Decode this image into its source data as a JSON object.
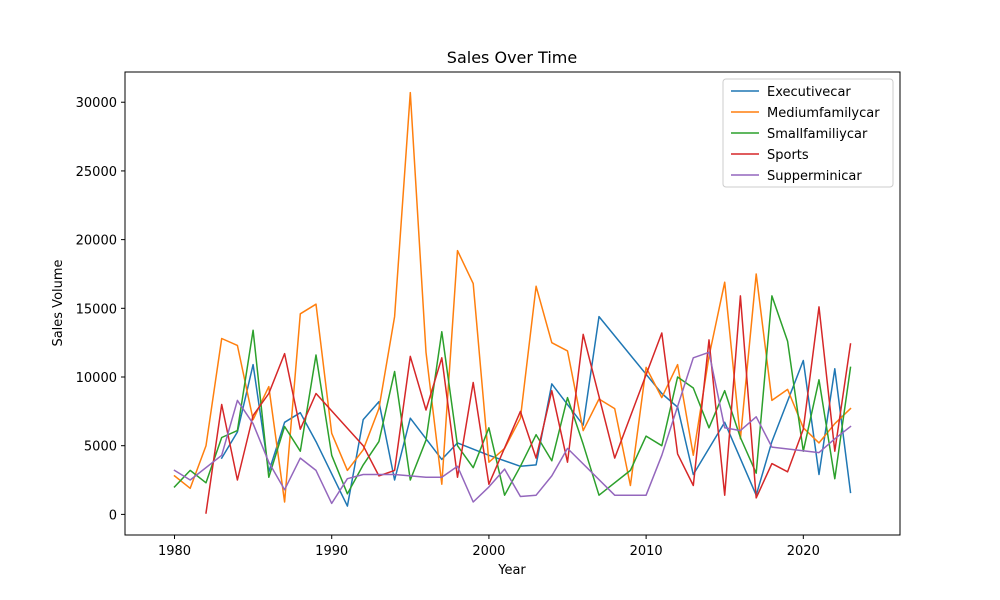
{
  "chart_data": {
    "type": "line",
    "title": "Sales Over Time",
    "xlabel": "Year",
    "ylabel": "Sales Volume",
    "xlim": [
      1976.85,
      2026.15
    ],
    "ylim": [
      -1500,
      32200
    ],
    "xticks": [
      1980,
      1990,
      2000,
      2010,
      2020
    ],
    "yticks": [
      0,
      5000,
      10000,
      15000,
      20000,
      25000,
      30000
    ],
    "grid": false,
    "legend_position": "top-right",
    "series": [
      {
        "name": "Executivecar",
        "color": "#1f77b4",
        "points": [
          [
            1983,
            4100
          ],
          [
            1984,
            6000
          ],
          [
            1985,
            10900
          ],
          [
            1986,
            3100
          ],
          [
            1987,
            6700
          ],
          [
            1988,
            7400
          ],
          [
            1989,
            5300
          ],
          [
            1991,
            600
          ],
          [
            1992,
            6900
          ],
          [
            1993,
            8200
          ],
          [
            1994,
            2500
          ],
          [
            1995,
            7000
          ],
          [
            1997,
            4000
          ],
          [
            1998,
            5200
          ],
          [
            2000,
            4300
          ],
          [
            2002,
            3500
          ],
          [
            2003,
            3600
          ],
          [
            2004,
            9500
          ],
          [
            2006,
            6500
          ],
          [
            2007,
            14400
          ],
          [
            2011,
            8800
          ],
          [
            2012,
            7800
          ],
          [
            2013,
            2900
          ],
          [
            2015,
            6700
          ],
          [
            2017,
            1400
          ],
          [
            2018,
            5300
          ],
          [
            2020,
            11200
          ],
          [
            2021,
            2900
          ],
          [
            2022,
            10600
          ],
          [
            2023,
            1600
          ]
        ]
      },
      {
        "name": "Mediumfamilycar",
        "color": "#ff7f0e",
        "points": [
          [
            1980,
            2800
          ],
          [
            1981,
            1900
          ],
          [
            1982,
            5000
          ],
          [
            1983,
            12800
          ],
          [
            1984,
            12300
          ],
          [
            1985,
            6900
          ],
          [
            1986,
            9300
          ],
          [
            1987,
            900
          ],
          [
            1988,
            14600
          ],
          [
            1989,
            15300
          ],
          [
            1990,
            5900
          ],
          [
            1991,
            3200
          ],
          [
            1992,
            4700
          ],
          [
            1993,
            7700
          ],
          [
            1994,
            14400
          ],
          [
            1995,
            30700
          ],
          [
            1996,
            11800
          ],
          [
            1997,
            2200
          ],
          [
            1998,
            19200
          ],
          [
            1999,
            16800
          ],
          [
            2000,
            3800
          ],
          [
            2001,
            4800
          ],
          [
            2002,
            7000
          ],
          [
            2003,
            16600
          ],
          [
            2004,
            12500
          ],
          [
            2005,
            11900
          ],
          [
            2006,
            6100
          ],
          [
            2007,
            8400
          ],
          [
            2008,
            7700
          ],
          [
            2009,
            2100
          ],
          [
            2010,
            10700
          ],
          [
            2011,
            8500
          ],
          [
            2012,
            10900
          ],
          [
            2013,
            4300
          ],
          [
            2014,
            11500
          ],
          [
            2015,
            16900
          ],
          [
            2016,
            5500
          ],
          [
            2017,
            17500
          ],
          [
            2018,
            8300
          ],
          [
            2019,
            9100
          ],
          [
            2020,
            6300
          ],
          [
            2021,
            5200
          ],
          [
            2022,
            6600
          ],
          [
            2023,
            7700
          ]
        ]
      },
      {
        "name": "Smallfamiliycar",
        "color": "#2ca02c",
        "points": [
          [
            1980,
            2000
          ],
          [
            1981,
            3200
          ],
          [
            1982,
            2300
          ],
          [
            1983,
            5600
          ],
          [
            1984,
            6100
          ],
          [
            1985,
            13400
          ],
          [
            1986,
            2700
          ],
          [
            1987,
            6400
          ],
          [
            1988,
            4600
          ],
          [
            1989,
            11600
          ],
          [
            1990,
            4300
          ],
          [
            1991,
            1500
          ],
          [
            1992,
            3600
          ],
          [
            1993,
            5300
          ],
          [
            1994,
            10400
          ],
          [
            1995,
            2500
          ],
          [
            1996,
            5400
          ],
          [
            1997,
            13300
          ],
          [
            1998,
            5000
          ],
          [
            1999,
            3400
          ],
          [
            2000,
            6300
          ],
          [
            2001,
            1400
          ],
          [
            2002,
            3500
          ],
          [
            2003,
            5800
          ],
          [
            2004,
            3900
          ],
          [
            2005,
            8500
          ],
          [
            2006,
            5100
          ],
          [
            2007,
            1400
          ],
          [
            2009,
            3200
          ],
          [
            2010,
            5700
          ],
          [
            2011,
            5000
          ],
          [
            2012,
            10000
          ],
          [
            2013,
            9200
          ],
          [
            2014,
            6300
          ],
          [
            2015,
            9000
          ],
          [
            2016,
            5600
          ],
          [
            2017,
            3000
          ],
          [
            2018,
            15900
          ],
          [
            2019,
            12600
          ],
          [
            2020,
            4600
          ],
          [
            2021,
            9800
          ],
          [
            2022,
            2600
          ],
          [
            2023,
            10700
          ]
        ]
      },
      {
        "name": "Sports",
        "color": "#d62728",
        "points": [
          [
            1982,
            100
          ],
          [
            1983,
            8000
          ],
          [
            1984,
            2500
          ],
          [
            1985,
            7200
          ],
          [
            1986,
            8800
          ],
          [
            1987,
            11700
          ],
          [
            1988,
            6200
          ],
          [
            1989,
            8800
          ],
          [
            1992,
            5000
          ],
          [
            1993,
            2800
          ],
          [
            1994,
            3200
          ],
          [
            1995,
            11500
          ],
          [
            1996,
            7600
          ],
          [
            1997,
            11400
          ],
          [
            1998,
            2700
          ],
          [
            1999,
            9600
          ],
          [
            2000,
            2200
          ],
          [
            2002,
            7500
          ],
          [
            2003,
            4100
          ],
          [
            2004,
            9000
          ],
          [
            2005,
            3800
          ],
          [
            2006,
            13100
          ],
          [
            2008,
            4100
          ],
          [
            2011,
            13200
          ],
          [
            2012,
            4400
          ],
          [
            2013,
            2100
          ],
          [
            2014,
            12700
          ],
          [
            2015,
            1400
          ],
          [
            2016,
            15900
          ],
          [
            2017,
            1200
          ],
          [
            2018,
            3700
          ],
          [
            2019,
            3100
          ],
          [
            2020,
            6200
          ],
          [
            2021,
            15100
          ],
          [
            2022,
            4600
          ],
          [
            2023,
            12400
          ]
        ]
      },
      {
        "name": "Supperminicar",
        "color": "#9467bd",
        "points": [
          [
            1980,
            3200
          ],
          [
            1981,
            2500
          ],
          [
            1983,
            4300
          ],
          [
            1984,
            8300
          ],
          [
            1985,
            6600
          ],
          [
            1986,
            3800
          ],
          [
            1987,
            1800
          ],
          [
            1988,
            4100
          ],
          [
            1989,
            3200
          ],
          [
            1990,
            800
          ],
          [
            1991,
            2600
          ],
          [
            1992,
            2900
          ],
          [
            1994,
            2900
          ],
          [
            1996,
            2700
          ],
          [
            1997,
            2700
          ],
          [
            1998,
            3500
          ],
          [
            1999,
            900
          ],
          [
            2000,
            2000
          ],
          [
            2001,
            3300
          ],
          [
            2002,
            1300
          ],
          [
            2003,
            1400
          ],
          [
            2004,
            2800
          ],
          [
            2005,
            4800
          ],
          [
            2008,
            1400
          ],
          [
            2010,
            1400
          ],
          [
            2011,
            4300
          ],
          [
            2013,
            11400
          ],
          [
            2014,
            11800
          ],
          [
            2015,
            6300
          ],
          [
            2016,
            6100
          ],
          [
            2017,
            7100
          ],
          [
            2018,
            4900
          ],
          [
            2021,
            4500
          ],
          [
            2022,
            5500
          ],
          [
            2023,
            6400
          ]
        ]
      }
    ]
  }
}
